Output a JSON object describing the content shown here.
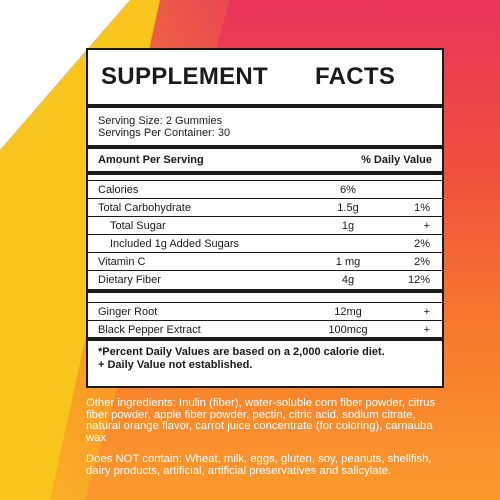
{
  "panel": {
    "title_word1": "SUPPLEMENT",
    "title_word2": "FACTS",
    "serving_size": "Serving Size: 2 Gummies",
    "servings_per_container": "Servings Per Container: 30",
    "amount_per_serving": "Amount Per Serving",
    "daily_value_header": "% Daily Value",
    "rows": [
      {
        "label": "Calories",
        "amount": "6%",
        "dv": ""
      },
      {
        "label": "Total Carbohydrate",
        "amount": "1.5g",
        "dv": "1%"
      },
      {
        "label": "Total Sugar",
        "amount": "1g",
        "dv": "+"
      },
      {
        "label": "Included 1g Added Sugars",
        "amount": "",
        "dv": "2%"
      },
      {
        "label": "Vitamin C",
        "amount": "1 mg",
        "dv": "2%"
      },
      {
        "label": "Dietary Fiber",
        "amount": "4g",
        "dv": "12%"
      },
      {
        "label": "Ginger Root",
        "amount": "12mg",
        "dv": "+"
      },
      {
        "label": "Black Pepper Extract",
        "amount": "100mcg",
        "dv": "+"
      }
    ],
    "footnote1": "*Percent Daily Values are based on a 2,000 calorie diet.",
    "footnote2": "+ Daily Value not established."
  },
  "other_ingredients": "Other ingredients: Inulin (fiber), water-soluble corn fiber powder, citrus fiber powder, apple fiber powder, pectin, citric acid, sodium citrate, natural orange flavor, carrot juice concentrate (for coloring), carnauba wax",
  "does_not_contain": "Does NOT contain: Wheat, milk, eggs, gluten, soy, peanuts, shellfish, dairy products, artificial, artificial preservatives and salicylate."
}
